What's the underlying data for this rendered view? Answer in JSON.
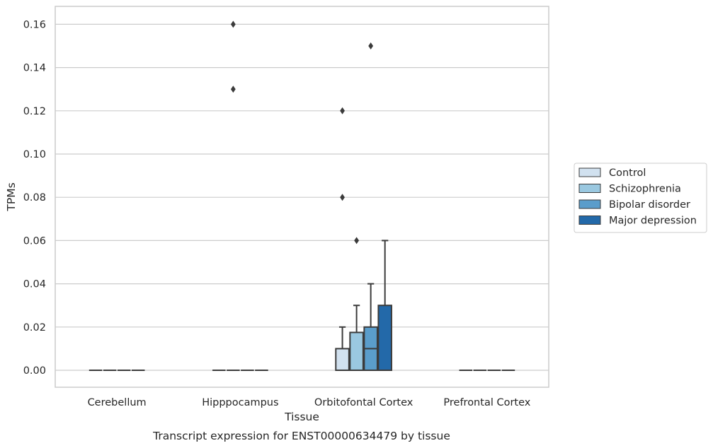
{
  "chart_data": {
    "type": "box",
    "title": "",
    "caption": "Transcript expression for ENST00000634479 by tissue",
    "xlabel": "Tissue",
    "ylabel": "TPMs",
    "ylim": [
      -0.008,
      0.168
    ],
    "yticks": [
      0.0,
      0.02,
      0.04,
      0.06,
      0.08,
      0.1,
      0.12,
      0.14,
      0.16
    ],
    "ytick_labels": [
      "0.00",
      "0.02",
      "0.04",
      "0.06",
      "0.08",
      "0.10",
      "0.12",
      "0.14",
      "0.16"
    ],
    "grid": true,
    "legend_position": "right",
    "categories": [
      "Cerebellum",
      "Hipppocampus",
      "Orbitofontal Cortex",
      "Prefrontal Cortex"
    ],
    "series": [
      {
        "name": "Control",
        "color": "#d1e1ef",
        "boxes": [
          {
            "q1": 0,
            "median": 0,
            "q3": 0,
            "whisker_low": 0,
            "whisker_high": 0,
            "outliers": []
          },
          {
            "q1": 0,
            "median": 0,
            "q3": 0,
            "whisker_low": 0,
            "whisker_high": 0,
            "outliers": []
          },
          {
            "q1": 0,
            "median": 0,
            "q3": 0.01,
            "whisker_low": 0,
            "whisker_high": 0.02,
            "outliers": [
              0.08,
              0.12
            ]
          },
          {
            "q1": 0,
            "median": 0,
            "q3": 0,
            "whisker_low": 0,
            "whisker_high": 0,
            "outliers": []
          }
        ]
      },
      {
        "name": "Schizophrenia",
        "color": "#9ac8e0",
        "boxes": [
          {
            "q1": 0,
            "median": 0,
            "q3": 0,
            "whisker_low": 0,
            "whisker_high": 0,
            "outliers": []
          },
          {
            "q1": 0,
            "median": 0,
            "q3": 0,
            "whisker_low": 0,
            "whisker_high": 0,
            "outliers": [
              0.13,
              0.16
            ]
          },
          {
            "q1": 0,
            "median": 0,
            "q3": 0.0175,
            "whisker_low": 0,
            "whisker_high": 0.03,
            "outliers": [
              0.06
            ]
          },
          {
            "q1": 0,
            "median": 0,
            "q3": 0,
            "whisker_low": 0,
            "whisker_high": 0,
            "outliers": []
          }
        ]
      },
      {
        "name": "Bipolar disorder",
        "color": "#5a9dcb",
        "boxes": [
          {
            "q1": 0,
            "median": 0,
            "q3": 0,
            "whisker_low": 0,
            "whisker_high": 0,
            "outliers": []
          },
          {
            "q1": 0,
            "median": 0,
            "q3": 0,
            "whisker_low": 0,
            "whisker_high": 0,
            "outliers": []
          },
          {
            "q1": 0,
            "median": 0.01,
            "q3": 0.02,
            "whisker_low": 0,
            "whisker_high": 0.04,
            "outliers": [
              0.15
            ]
          },
          {
            "q1": 0,
            "median": 0,
            "q3": 0,
            "whisker_low": 0,
            "whisker_high": 0,
            "outliers": []
          }
        ]
      },
      {
        "name": "Major depression",
        "color": "#2369a9",
        "boxes": [
          {
            "q1": 0,
            "median": 0,
            "q3": 0,
            "whisker_low": 0,
            "whisker_high": 0,
            "outliers": []
          },
          {
            "q1": 0,
            "median": 0,
            "q3": 0,
            "whisker_low": 0,
            "whisker_high": 0,
            "outliers": []
          },
          {
            "q1": 0,
            "median": 0,
            "q3": 0.03,
            "whisker_low": 0,
            "whisker_high": 0.06,
            "outliers": []
          },
          {
            "q1": 0,
            "median": 0,
            "q3": 0,
            "whisker_low": 0,
            "whisker_high": 0,
            "outliers": []
          }
        ]
      }
    ]
  }
}
